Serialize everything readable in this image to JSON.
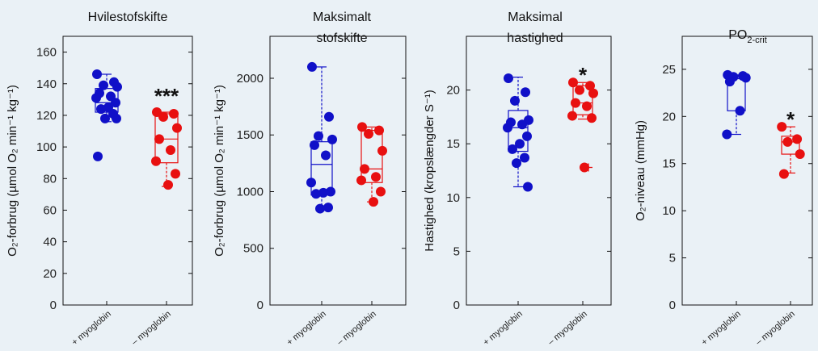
{
  "chart_data": [
    {
      "type": "box+scatter",
      "title_lines": [
        "Hvilestofskifte"
      ],
      "ylabel": "O₂-forbrug (µmol O₂ min⁻¹ kg⁻¹)",
      "ylim": [
        0,
        170
      ],
      "yticks": [
        0,
        20,
        40,
        60,
        80,
        100,
        120,
        140,
        160
      ],
      "categories": [
        "+ myoglobin",
        "– myoglobin"
      ],
      "significance": "***",
      "groups": [
        {
          "color": "#1010c8",
          "points": [
            146,
            141,
            139,
            138,
            134,
            132,
            131,
            128,
            125,
            124,
            121,
            118,
            118,
            94
          ],
          "box": {
            "q1": 122,
            "median": 128,
            "q3": 137,
            "whisker_low": 116,
            "whisker_high": 146
          }
        },
        {
          "color": "#e81010",
          "points": [
            122,
            121,
            119,
            112,
            105,
            98,
            91,
            83,
            76
          ],
          "box": {
            "q1": 90,
            "median": 105,
            "q3": 121,
            "whisker_low": 75,
            "whisker_high": 122
          }
        }
      ]
    },
    {
      "type": "box+scatter",
      "title_lines": [
        "Maksimalt",
        "stofskifte"
      ],
      "ylabel": "O₂-forbrug (µmol O₂ min⁻¹ kg⁻¹)",
      "ylim": [
        0,
        2370
      ],
      "yticks": [
        0,
        500,
        1000,
        1500,
        2000
      ],
      "categories": [
        "+ myoglobin",
        "– myoglobin"
      ],
      "significance": "",
      "groups": [
        {
          "color": "#1010c8",
          "points": [
            2100,
            1660,
            1490,
            1460,
            1410,
            1320,
            1080,
            1000,
            990,
            980,
            860,
            850
          ],
          "box": {
            "q1": 970,
            "median": 1240,
            "q3": 1440,
            "whisker_low": 850,
            "whisker_high": 2100
          }
        },
        {
          "color": "#e81010",
          "points": [
            1570,
            1540,
            1510,
            1360,
            1200,
            1130,
            1100,
            1000,
            910
          ],
          "box": {
            "q1": 1080,
            "median": 1200,
            "q3": 1540,
            "whisker_low": 910,
            "whisker_high": 1570
          }
        }
      ]
    },
    {
      "type": "box+scatter",
      "title_lines": [
        "Maksimal",
        "hastighed"
      ],
      "ylabel": "Hastighed (kropslængder S⁻¹)",
      "ylim": [
        0,
        25
      ],
      "yticks": [
        0,
        5,
        10,
        15,
        20
      ],
      "categories": [
        "+ myoglobin",
        "– myoglobin"
      ],
      "significance": "*",
      "groups": [
        {
          "color": "#1010c8",
          "points": [
            21.1,
            19.8,
            19.0,
            17.2,
            17.0,
            16.8,
            16.5,
            15.7,
            15.0,
            14.5,
            13.7,
            13.2,
            11.0
          ],
          "box": {
            "q1": 14.3,
            "median": 16.5,
            "q3": 18.1,
            "whisker_low": 11.0,
            "whisker_high": 21.2
          }
        },
        {
          "color": "#e81010",
          "points": [
            20.7,
            20.4,
            20.0,
            19.7,
            18.8,
            18.5,
            17.6,
            17.4,
            12.8
          ],
          "box": {
            "q1": 17.7,
            "median": 18.8,
            "q3": 20.4,
            "whisker_low": 17.3,
            "whisker_high": 20.7
          },
          "outlier": 12.8
        }
      ]
    },
    {
      "type": "box+scatter",
      "title_main": "PO",
      "title_sub": "2-crit",
      "ylabel": "O₂-niveau (mmHg)",
      "ylim": [
        0,
        28.5
      ],
      "yticks": [
        0,
        5,
        10,
        15,
        20,
        25
      ],
      "categories": [
        "+ myoglobin",
        "– myoglobin"
      ],
      "significance": "*",
      "groups": [
        {
          "color": "#1010c8",
          "points": [
            24.4,
            24.3,
            24.2,
            24.1,
            23.7,
            20.6,
            18.1
          ],
          "box": {
            "q1": 20.6,
            "median": 24.0,
            "q3": 24.3,
            "whisker_low": 18.1,
            "whisker_high": 24.4
          }
        },
        {
          "color": "#e81010",
          "points": [
            18.9,
            17.6,
            17.3,
            16.0,
            13.9
          ],
          "box": {
            "q1": 16.0,
            "median": 17.3,
            "q3": 17.9,
            "whisker_low": 14.0,
            "whisker_high": 18.9
          }
        }
      ]
    }
  ]
}
